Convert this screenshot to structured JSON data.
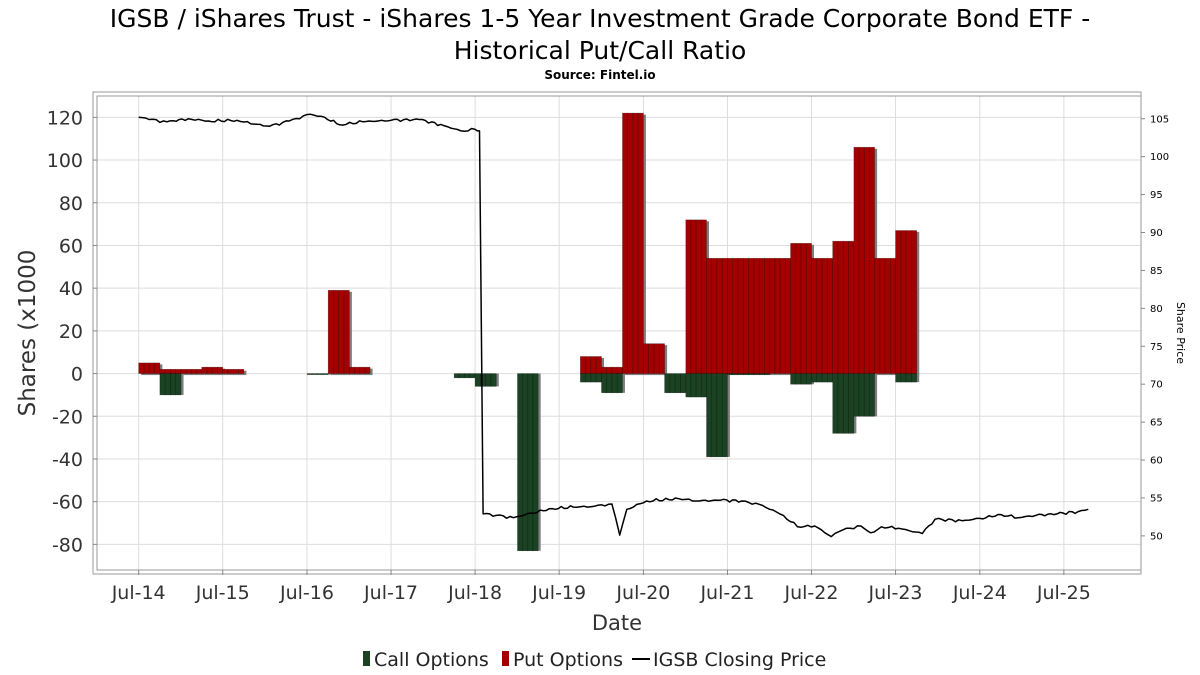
{
  "chart_data": {
    "type": "bar",
    "title_line1": "IGSB / iShares Trust - iShares 1-5 Year Investment Grade Corporate Bond ETF -",
    "title_line2": "Historical Put/Call Ratio",
    "subtitle": "Source: Fintel.io",
    "xlabel": "Date",
    "ylabel": "Shares (x1000",
    "y2label": "Share Price",
    "ylim": [
      -92,
      130
    ],
    "y2lim": [
      45.5,
      108
    ],
    "yticks": [
      120,
      100,
      80,
      60,
      40,
      20,
      0,
      -20,
      -40,
      -60,
      -80
    ],
    "y2ticks": [
      105,
      100,
      95,
      90,
      85,
      80,
      75,
      70,
      65,
      60,
      55,
      50
    ],
    "xlim": [
      "2014-01-01",
      "2026-06-01"
    ],
    "xticks": [
      {
        "label": "Jul-14",
        "date": "2014-07-01"
      },
      {
        "label": "Jul-15",
        "date": "2015-07-01"
      },
      {
        "label": "Jul-16",
        "date": "2016-07-01"
      },
      {
        "label": "Jul-17",
        "date": "2017-07-01"
      },
      {
        "label": "Jul-18",
        "date": "2018-07-01"
      },
      {
        "label": "Jul-19",
        "date": "2019-07-01"
      },
      {
        "label": "Jul-20",
        "date": "2020-07-01"
      },
      {
        "label": "Jul-21",
        "date": "2021-07-01"
      },
      {
        "label": "Jul-22",
        "date": "2022-07-01"
      },
      {
        "label": "Jul-23",
        "date": "2023-07-01"
      },
      {
        "label": "Jul-24",
        "date": "2024-07-01"
      },
      {
        "label": "Jul-25",
        "date": "2025-07-01"
      }
    ],
    "grid": true,
    "legend_position": "bottom",
    "legend": [
      "Call Options",
      "Put Options",
      "IGSB Closing Price"
    ],
    "colors": {
      "call": "#1a4223",
      "put": "#a50000",
      "price": "#000000",
      "shadow": "#7d7d7d"
    },
    "series": [
      {
        "name": "Put Options",
        "segments": [
          {
            "start": "2014-07-01",
            "end": "2014-10-01",
            "value": 5
          },
          {
            "start": "2014-10-01",
            "end": "2015-01-01",
            "value": 2
          },
          {
            "start": "2015-01-01",
            "end": "2015-04-01",
            "value": 2
          },
          {
            "start": "2015-04-01",
            "end": "2015-07-01",
            "value": 3
          },
          {
            "start": "2015-07-01",
            "end": "2015-10-01",
            "value": 2
          },
          {
            "start": "2016-10-01",
            "end": "2017-01-01",
            "value": 39
          },
          {
            "start": "2017-01-01",
            "end": "2017-04-01",
            "value": 3
          },
          {
            "start": "2019-10-01",
            "end": "2020-01-01",
            "value": 8
          },
          {
            "start": "2020-01-01",
            "end": "2020-04-01",
            "value": 3
          },
          {
            "start": "2020-04-01",
            "end": "2020-07-01",
            "value": 122
          },
          {
            "start": "2020-07-01",
            "end": "2020-10-01",
            "value": 14
          },
          {
            "start": "2021-01-01",
            "end": "2021-04-01",
            "value": 72
          },
          {
            "start": "2021-04-01",
            "end": "2021-07-01",
            "value": 54
          },
          {
            "start": "2021-07-01",
            "end": "2021-10-01",
            "value": 54
          },
          {
            "start": "2021-10-01",
            "end": "2022-01-01",
            "value": 54
          },
          {
            "start": "2022-01-01",
            "end": "2022-04-01",
            "value": 54
          },
          {
            "start": "2022-04-01",
            "end": "2022-07-01",
            "value": 61
          },
          {
            "start": "2022-07-01",
            "end": "2022-10-01",
            "value": 54
          },
          {
            "start": "2022-10-01",
            "end": "2023-01-01",
            "value": 62
          },
          {
            "start": "2023-01-01",
            "end": "2023-04-01",
            "value": 106
          },
          {
            "start": "2023-04-01",
            "end": "2023-07-01",
            "value": 54
          },
          {
            "start": "2023-07-01",
            "end": "2023-10-01",
            "value": 67
          }
        ]
      },
      {
        "name": "Call Options",
        "segments": [
          {
            "start": "2014-10-01",
            "end": "2015-01-01",
            "value": -10
          },
          {
            "start": "2016-07-01",
            "end": "2016-10-01",
            "value": -0.5
          },
          {
            "start": "2018-04-01",
            "end": "2018-07-01",
            "value": -2
          },
          {
            "start": "2018-07-01",
            "end": "2018-10-01",
            "value": -6
          },
          {
            "start": "2019-01-01",
            "end": "2019-04-01",
            "value": -83
          },
          {
            "start": "2019-10-01",
            "end": "2020-01-01",
            "value": -4
          },
          {
            "start": "2020-01-01",
            "end": "2020-04-01",
            "value": -9
          },
          {
            "start": "2020-10-01",
            "end": "2021-01-01",
            "value": -9
          },
          {
            "start": "2021-01-01",
            "end": "2021-04-01",
            "value": -11
          },
          {
            "start": "2021-04-01",
            "end": "2021-07-01",
            "value": -39
          },
          {
            "start": "2021-07-01",
            "end": "2021-10-01",
            "value": -0.5
          },
          {
            "start": "2021-10-01",
            "end": "2022-01-01",
            "value": -0.5
          },
          {
            "start": "2022-04-01",
            "end": "2022-07-01",
            "value": -5
          },
          {
            "start": "2022-07-01",
            "end": "2022-10-01",
            "value": -4
          },
          {
            "start": "2022-10-01",
            "end": "2023-01-01",
            "value": -28
          },
          {
            "start": "2023-01-01",
            "end": "2023-04-01",
            "value": -20
          },
          {
            "start": "2023-07-01",
            "end": "2023-10-01",
            "value": -4
          }
        ]
      },
      {
        "name": "IGSB Closing Price",
        "axis": "right",
        "points": [
          [
            "2014-07-01",
            105.2
          ],
          [
            "2014-08-15",
            104.9
          ],
          [
            "2014-11-01",
            104.6
          ],
          [
            "2015-02-01",
            105.0
          ],
          [
            "2015-05-01",
            104.7
          ],
          [
            "2015-09-01",
            104.8
          ],
          [
            "2015-11-15",
            104.3
          ],
          [
            "2016-01-20",
            104.0
          ],
          [
            "2016-04-15",
            104.7
          ],
          [
            "2016-07-15",
            105.6
          ],
          [
            "2016-09-15",
            105.2
          ],
          [
            "2016-11-20",
            104.2
          ],
          [
            "2017-03-01",
            104.6
          ],
          [
            "2017-07-01",
            104.8
          ],
          [
            "2017-11-01",
            104.9
          ],
          [
            "2018-02-15",
            104.1
          ],
          [
            "2018-05-01",
            103.4
          ],
          [
            "2018-07-01",
            103.6
          ],
          [
            "2018-07-20",
            103.4
          ],
          [
            "2018-08-05",
            52.9
          ],
          [
            "2018-10-01",
            52.7
          ],
          [
            "2018-12-15",
            52.4
          ],
          [
            "2019-03-01",
            53.0
          ],
          [
            "2019-06-01",
            53.6
          ],
          [
            "2019-09-01",
            53.8
          ],
          [
            "2019-12-01",
            53.9
          ],
          [
            "2020-02-15",
            54.2
          ],
          [
            "2020-03-20",
            50.1
          ],
          [
            "2020-04-20",
            53.5
          ],
          [
            "2020-07-15",
            54.6
          ],
          [
            "2020-12-01",
            54.9
          ],
          [
            "2021-03-01",
            54.6
          ],
          [
            "2021-06-01",
            54.7
          ],
          [
            "2021-09-01",
            54.6
          ],
          [
            "2021-12-01",
            54.0
          ],
          [
            "2022-03-01",
            52.7
          ],
          [
            "2022-05-01",
            51.2
          ],
          [
            "2022-07-15",
            51.3
          ],
          [
            "2022-09-25",
            49.9
          ],
          [
            "2022-11-15",
            50.8
          ],
          [
            "2023-02-01",
            51.3
          ],
          [
            "2023-03-15",
            50.4
          ],
          [
            "2023-05-01",
            51.2
          ],
          [
            "2023-07-15",
            51.0
          ],
          [
            "2023-10-25",
            50.3
          ],
          [
            "2023-12-20",
            52.2
          ],
          [
            "2024-04-15",
            52.0
          ],
          [
            "2024-07-01",
            52.3
          ],
          [
            "2024-10-01",
            52.8
          ],
          [
            "2024-12-15",
            52.4
          ],
          [
            "2025-03-01",
            52.7
          ],
          [
            "2025-06-01",
            52.9
          ],
          [
            "2025-09-01",
            53.2
          ],
          [
            "2025-10-15",
            53.5
          ]
        ]
      }
    ]
  }
}
